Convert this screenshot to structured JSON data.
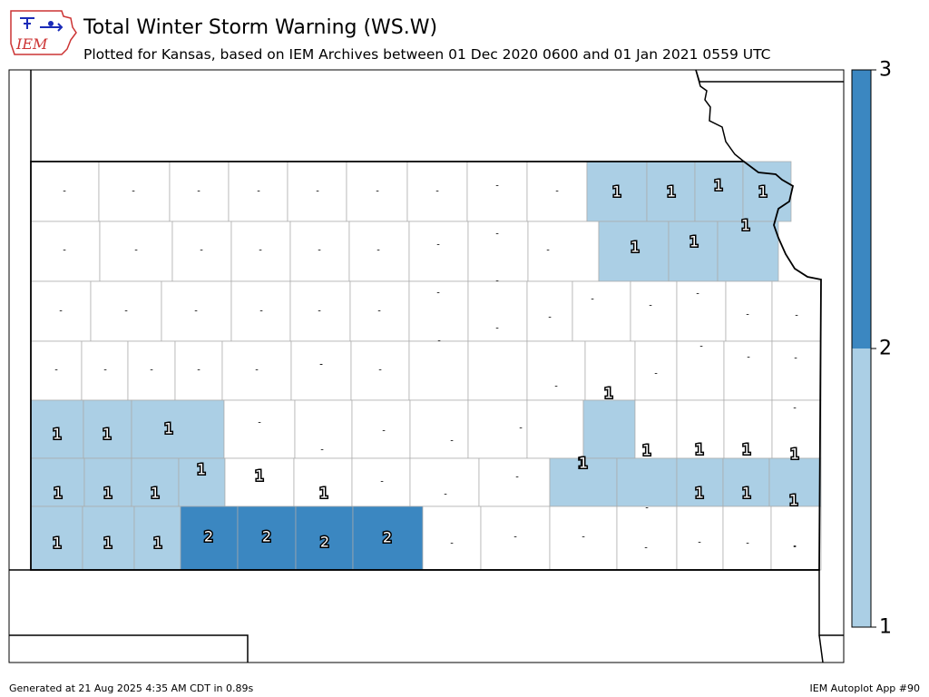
{
  "header": {
    "title": "Total Winter Storm Warning (WS.W)",
    "subtitle": "Plotted for Kansas, based on IEM Archives  between 01 Dec 2020 0600 and 01 Jan 2021 0559 UTC",
    "logo_text": "IEM"
  },
  "footer": {
    "generated": "Generated at 21 Aug 2025 4:35 AM CDT in 0.89s",
    "app": "IEM Autoplot App #90"
  },
  "colors": {
    "level1": "#abcfe5",
    "level2": "#3b87c1",
    "none": "#ffffff",
    "county_border": "#aaaaaa"
  },
  "colorbar": {
    "ticks": [
      "1",
      "2",
      "3"
    ],
    "bins": [
      {
        "from": 1,
        "to": 2,
        "color": "#abcfe5"
      },
      {
        "from": 2,
        "to": 3,
        "color": "#3b87c1"
      }
    ]
  },
  "map_data": {
    "state": "Kansas",
    "counties": [
      {
        "row": 0,
        "values": [
          "-",
          "-",
          "-",
          "-",
          "-",
          "-",
          "-",
          "-",
          "-",
          "1",
          "1",
          "1",
          "1"
        ]
      },
      {
        "row": 1,
        "values": [
          "-",
          "-",
          "-",
          "-",
          "-",
          "-",
          "-",
          "-",
          "-",
          "1",
          "1",
          "1"
        ]
      },
      {
        "row": 2,
        "values": [
          "-",
          "-",
          "-",
          "-",
          "-",
          "-",
          "-",
          "-",
          "-",
          "-",
          "-",
          "-",
          "-",
          "-"
        ]
      },
      {
        "row": 3,
        "values": [
          "-",
          "-",
          "-",
          "-",
          "-",
          "-",
          "-",
          "-",
          "-",
          "-",
          "-",
          "-",
          "-",
          "-",
          "-"
        ]
      },
      {
        "row": 4,
        "values": [
          "1",
          "1",
          "1",
          "-",
          "-",
          "-",
          "-",
          "-",
          "-",
          "1",
          "-",
          "-",
          "-",
          "-",
          "-"
        ]
      },
      {
        "row": 5,
        "values": [
          "1",
          "1",
          "1",
          "1",
          "-",
          "-",
          "-",
          "-",
          "-",
          "1",
          "1",
          "1",
          "1",
          "1"
        ]
      },
      {
        "row": 6,
        "values": [
          "1",
          "1",
          "1",
          "1",
          "-",
          "-",
          "-",
          "-",
          "-",
          "1",
          "1",
          "1",
          "1"
        ]
      },
      {
        "row": 7,
        "values": [
          "1",
          "1",
          "1",
          "2",
          "2",
          "2",
          "2",
          "-",
          "-",
          "-",
          "-",
          "-",
          "-",
          "-"
        ]
      }
    ]
  }
}
